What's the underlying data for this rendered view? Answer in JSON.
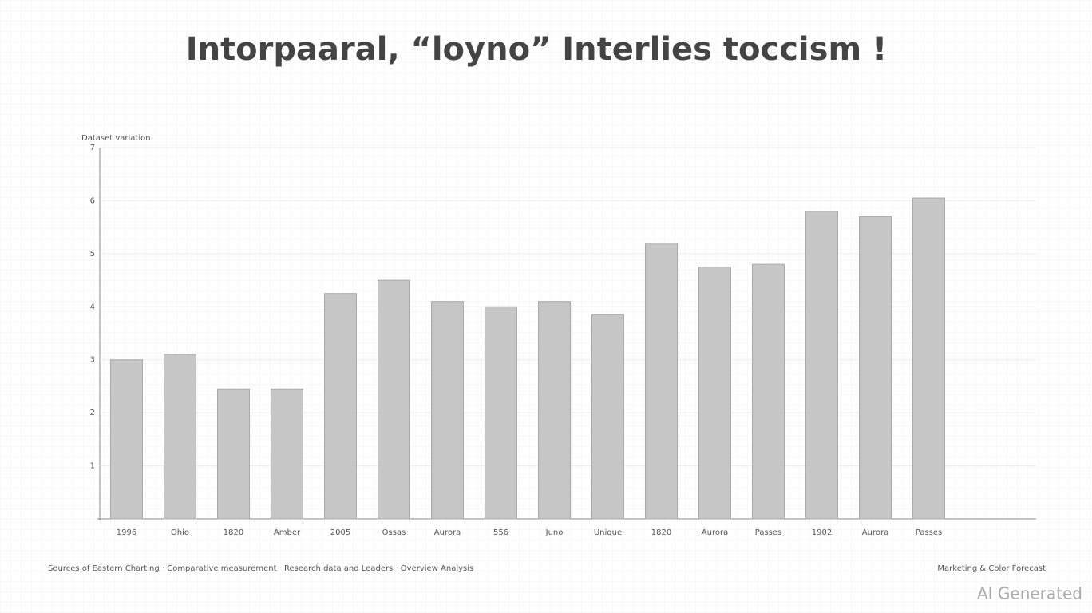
{
  "chart_data": {
    "type": "bar",
    "title": "Intorpaaral, “loyno” Interlies toccism !",
    "y_label": "Dataset variation",
    "categories": [
      "1996",
      "Ohio",
      "1820",
      "Amber",
      "2005",
      "Ossas",
      "Aurora",
      "556",
      "Juno",
      "Unique",
      "1820",
      "Aurora",
      "Passes",
      "1902",
      "Aurora",
      "Passes"
    ],
    "values": [
      3.0,
      3.1,
      2.45,
      2.45,
      4.25,
      4.5,
      4.1,
      4.0,
      4.1,
      3.85,
      5.2,
      4.75,
      4.8,
      5.8,
      5.7,
      6.05
    ],
    "color": "#c6c6c6",
    "ylim": [
      0,
      7
    ],
    "yticks": [
      1,
      2,
      3,
      4,
      5,
      6,
      7
    ],
    "grid": true,
    "source": "Sources of Eastern Charting · Comparative measurement · Research data and Leaders · Overview Analysis",
    "note": "Marketing & Color Forecast",
    "watermark": "AI Generated"
  }
}
